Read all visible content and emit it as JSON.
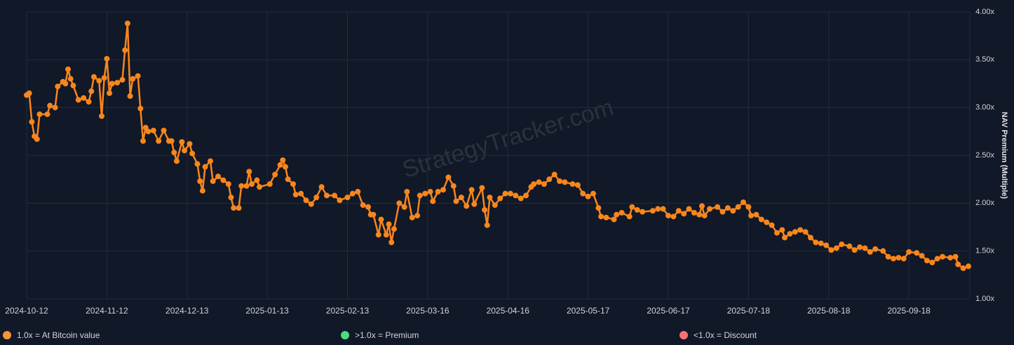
{
  "chart_data": {
    "type": "line",
    "watermark": "StrategyTracker.com",
    "y_label": "NAV Premium (Multiple)",
    "color": "#f7861d",
    "grid": true,
    "xlim": [
      "2024-10-12",
      "2025-10-11"
    ],
    "xticks": [
      "2024-10-12",
      "2024-11-12",
      "2024-12-13",
      "2025-01-13",
      "2025-02-13",
      "2025-03-16",
      "2025-04-16",
      "2025-05-17",
      "2025-06-17",
      "2025-07-18",
      "2025-08-18",
      "2025-09-18"
    ],
    "ylim": [
      1,
      4
    ],
    "yticks": [
      {
        "value": 1,
        "label": "1.00x"
      },
      {
        "value": 1.5,
        "label": "1.50x"
      },
      {
        "value": 2,
        "label": "2.00x"
      },
      {
        "value": 2.5,
        "label": "2.50x"
      },
      {
        "value": 3,
        "label": "3.00x"
      },
      {
        "value": 3.5,
        "label": "3.50x"
      },
      {
        "value": 4,
        "label": "4.00x"
      }
    ],
    "legend": [
      {
        "label": "1.0x = At Bitcoin value",
        "color": "#f7933a"
      },
      {
        "label": ">1.0x = Premium",
        "color": "#4ade80"
      },
      {
        "label": "<1.0x = Discount",
        "color": "#f87171"
      }
    ],
    "x": [
      "2024-10-12",
      "2024-10-13",
      "2024-10-14",
      "2024-10-15",
      "2024-10-16",
      "2024-10-17",
      "2024-10-20",
      "2024-10-21",
      "2024-10-23",
      "2024-10-24",
      "2024-10-26",
      "2024-10-27",
      "2024-10-28",
      "2024-10-29",
      "2024-10-30",
      "2024-11-01",
      "2024-11-03",
      "2024-11-05",
      "2024-11-06",
      "2024-11-07",
      "2024-11-09",
      "2024-11-10",
      "2024-11-11",
      "2024-11-12",
      "2024-11-13",
      "2024-11-14",
      "2024-11-16",
      "2024-11-18",
      "2024-11-19",
      "2024-11-20",
      "2024-11-21",
      "2024-11-22",
      "2024-11-24",
      "2024-11-25",
      "2024-11-26",
      "2024-11-27",
      "2024-11-28",
      "2024-11-30",
      "2024-12-02",
      "2024-12-04",
      "2024-12-06",
      "2024-12-07",
      "2024-12-08",
      "2024-12-09",
      "2024-12-11",
      "2024-12-12",
      "2024-12-14",
      "2024-12-15",
      "2024-12-17",
      "2024-12-18",
      "2024-12-19",
      "2024-12-20",
      "2024-12-22",
      "2024-12-23",
      "2024-12-25",
      "2024-12-27",
      "2024-12-29",
      "2024-12-30",
      "2024-12-31",
      "2025-01-02",
      "2025-01-03",
      "2025-01-05",
      "2025-01-06",
      "2025-01-07",
      "2025-01-09",
      "2025-01-10",
      "2025-01-14",
      "2025-01-16",
      "2025-01-18",
      "2025-01-19",
      "2025-01-20",
      "2025-01-21",
      "2025-01-23",
      "2025-01-24",
      "2025-01-26",
      "2025-01-28",
      "2025-01-30",
      "2025-02-01",
      "2025-02-03",
      "2025-02-05",
      "2025-02-08",
      "2025-02-10",
      "2025-02-13",
      "2025-02-15",
      "2025-02-17",
      "2025-02-19",
      "2025-02-21",
      "2025-02-22",
      "2025-02-23",
      "2025-02-25",
      "2025-02-26",
      "2025-02-28",
      "2025-03-01",
      "2025-03-02",
      "2025-03-03",
      "2025-03-05",
      "2025-03-07",
      "2025-03-08",
      "2025-03-10",
      "2025-03-12",
      "2025-03-13",
      "2025-03-15",
      "2025-03-17",
      "2025-03-18",
      "2025-03-20",
      "2025-03-22",
      "2025-03-24",
      "2025-03-26",
      "2025-03-27",
      "2025-03-29",
      "2025-03-31",
      "2025-04-02",
      "2025-04-03",
      "2025-04-06",
      "2025-04-07",
      "2025-04-08",
      "2025-04-09",
      "2025-04-11",
      "2025-04-13",
      "2025-04-15",
      "2025-04-17",
      "2025-04-19",
      "2025-04-21",
      "2025-04-23",
      "2025-04-25",
      "2025-04-26",
      "2025-04-28",
      "2025-04-30",
      "2025-05-02",
      "2025-05-04",
      "2025-05-06",
      "2025-05-08",
      "2025-05-11",
      "2025-05-13",
      "2025-05-15",
      "2025-05-17",
      "2025-05-19",
      "2025-05-21",
      "2025-05-22",
      "2025-05-24",
      "2025-05-27",
      "2025-05-28",
      "2025-05-30",
      "2025-06-02",
      "2025-06-03",
      "2025-06-05",
      "2025-06-07",
      "2025-06-11",
      "2025-06-13",
      "2025-06-15",
      "2025-06-17",
      "2025-06-19",
      "2025-06-21",
      "2025-06-23",
      "2025-06-25",
      "2025-06-27",
      "2025-06-29",
      "2025-06-30",
      "2025-07-01",
      "2025-07-03",
      "2025-07-06",
      "2025-07-08",
      "2025-07-10",
      "2025-07-12",
      "2025-07-14",
      "2025-07-16",
      "2025-07-18",
      "2025-07-19",
      "2025-07-21",
      "2025-07-23",
      "2025-07-25",
      "2025-07-27",
      "2025-07-29",
      "2025-07-31",
      "2025-08-01",
      "2025-08-03",
      "2025-08-05",
      "2025-08-07",
      "2025-08-09",
      "2025-08-11",
      "2025-08-13",
      "2025-08-15",
      "2025-08-17",
      "2025-08-19",
      "2025-08-21",
      "2025-08-23",
      "2025-08-26",
      "2025-08-28",
      "2025-08-30",
      "2025-09-01",
      "2025-09-03",
      "2025-09-05",
      "2025-09-08",
      "2025-09-10",
      "2025-09-12",
      "2025-09-14",
      "2025-09-16",
      "2025-09-18",
      "2025-09-21",
      "2025-09-23",
      "2025-09-25",
      "2025-09-27",
      "2025-09-29",
      "2025-10-01",
      "2025-10-04",
      "2025-10-06",
      "2025-10-07",
      "2025-10-09",
      "2025-10-11"
    ],
    "values": [
      3.13,
      3.15,
      2.85,
      2.7,
      2.67,
      2.93,
      2.93,
      3.02,
      3.0,
      3.22,
      3.27,
      3.25,
      3.4,
      3.3,
      3.23,
      3.08,
      3.1,
      3.06,
      3.17,
      3.32,
      3.28,
      2.91,
      3.31,
      3.51,
      3.15,
      3.25,
      3.26,
      3.29,
      3.6,
      3.88,
      3.12,
      3.3,
      3.33,
      2.99,
      2.65,
      2.79,
      2.75,
      2.76,
      2.65,
      2.76,
      2.65,
      2.65,
      2.53,
      2.44,
      2.64,
      2.55,
      2.62,
      2.52,
      2.41,
      2.23,
      2.13,
      2.38,
      2.44,
      2.23,
      2.28,
      2.24,
      2.2,
      2.06,
      1.95,
      1.95,
      2.18,
      2.18,
      2.33,
      2.2,
      2.24,
      2.17,
      2.2,
      2.3,
      2.4,
      2.45,
      2.38,
      2.25,
      2.2,
      2.09,
      2.1,
      2.03,
      1.99,
      2.06,
      2.17,
      2.08,
      2.08,
      2.03,
      2.06,
      2.1,
      2.12,
      1.98,
      1.96,
      1.88,
      1.88,
      1.67,
      1.83,
      1.67,
      1.78,
      1.59,
      1.73,
      2.0,
      1.96,
      2.12,
      1.85,
      1.87,
      2.08,
      2.1,
      2.12,
      2.02,
      2.12,
      2.14,
      2.27,
      2.18,
      2.02,
      2.06,
      1.97,
      2.14,
      1.99,
      2.16,
      1.93,
      1.77,
      2.06,
      1.98,
      2.05,
      2.1,
      2.1,
      2.08,
      2.05,
      2.08,
      2.17,
      2.2,
      2.22,
      2.2,
      2.25,
      2.3,
      2.23,
      2.22,
      2.2,
      2.19,
      2.1,
      2.07,
      2.1,
      1.95,
      1.86,
      1.85,
      1.83,
      1.88,
      1.9,
      1.86,
      1.96,
      1.93,
      1.91,
      1.92,
      1.94,
      1.94,
      1.87,
      1.86,
      1.92,
      1.89,
      1.94,
      1.9,
      1.88,
      1.97,
      1.87,
      1.94,
      1.96,
      1.91,
      1.95,
      1.92,
      1.96,
      2.01,
      1.96,
      1.87,
      1.88,
      1.83,
      1.8,
      1.77,
      1.69,
      1.72,
      1.64,
      1.68,
      1.7,
      1.72,
      1.7,
      1.64,
      1.59,
      1.58,
      1.56,
      1.51,
      1.53,
      1.57,
      1.55,
      1.51,
      1.54,
      1.53,
      1.49,
      1.52,
      1.5,
      1.44,
      1.42,
      1.43,
      1.42,
      1.49,
      1.48,
      1.45,
      1.4,
      1.38,
      1.42,
      1.44,
      1.43,
      1.44,
      1.36,
      1.32,
      1.34
    ]
  }
}
